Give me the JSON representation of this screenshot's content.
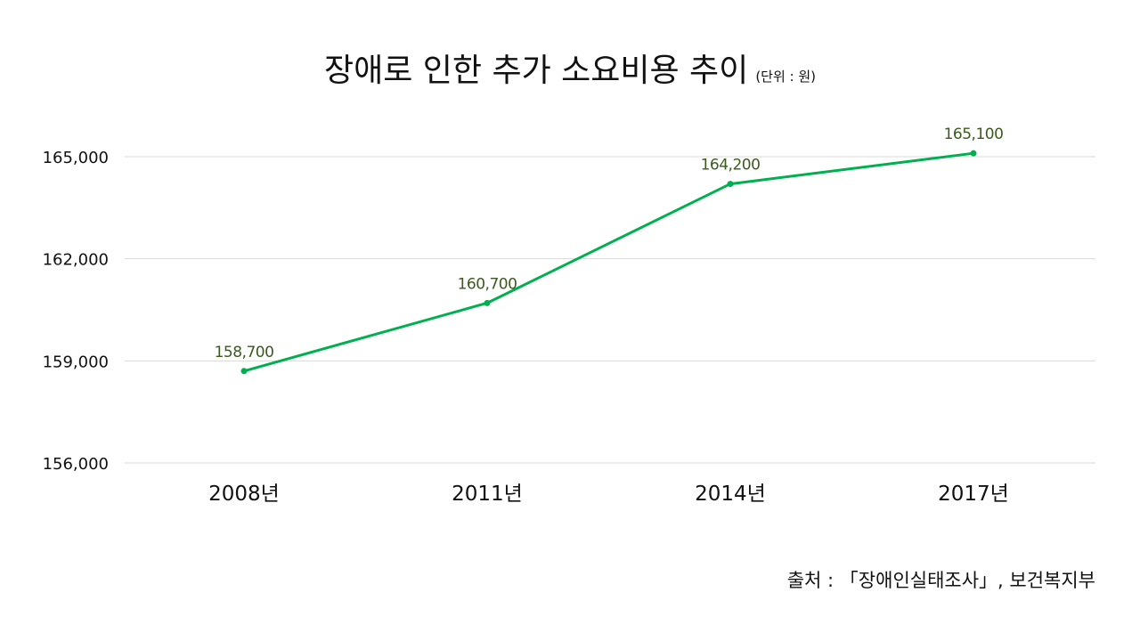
{
  "chart_data": {
    "type": "line",
    "title": "장애로 인한 추가 소요비용 추이",
    "unit_label": "(단위 : 원)",
    "categories": [
      "2008년",
      "2011년",
      "2014년",
      "2017년"
    ],
    "values": [
      158700,
      160700,
      164200,
      165100
    ],
    "data_labels": [
      "158,700",
      "160,700",
      "164,200",
      "165,100"
    ],
    "y_ticks": [
      156000,
      159000,
      162000,
      165000
    ],
    "y_tick_labels": [
      "156,000",
      "159,000",
      "162,000",
      "165,000"
    ],
    "ylim": [
      156000,
      165000
    ],
    "grid": true,
    "line_color": "#00b050",
    "label_color": "#3b5a1e"
  },
  "source": "출처 : 「장애인실태조사」, 보건복지부"
}
